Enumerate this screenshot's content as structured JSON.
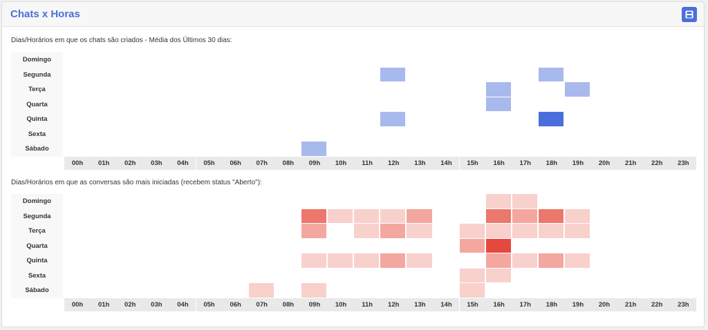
{
  "header": {
    "title": "Chats x Horas",
    "save_icon": "save-icon"
  },
  "colors": {
    "accent": "#4a6fdc"
  },
  "days": [
    "Domingo",
    "Segunda",
    "Terça",
    "Quarta",
    "Quinta",
    "Sexta",
    "Sábado"
  ],
  "hours": [
    "00h",
    "01h",
    "02h",
    "03h",
    "04h",
    "05h",
    "06h",
    "07h",
    "08h",
    "09h",
    "10h",
    "11h",
    "12h",
    "13h",
    "14h",
    "15h",
    "16h",
    "17h",
    "18h",
    "19h",
    "20h",
    "21h",
    "22h",
    "23h"
  ],
  "section1": {
    "caption": "Dias/Horários em que os chats são criados - Média dos Últimos 30 dias:",
    "palette": {
      "none": "#ffffff",
      "low": "#a8b9ed",
      "high": "#4a6fdc"
    },
    "cells": [
      [
        0,
        0,
        0,
        0,
        0,
        0,
        0,
        0,
        0,
        0,
        0,
        0,
        0,
        0,
        0,
        0,
        0,
        0,
        0,
        0,
        0,
        0,
        0,
        0
      ],
      [
        0,
        0,
        0,
        0,
        0,
        0,
        0,
        0,
        0,
        0,
        0,
        0,
        1,
        0,
        0,
        0,
        0,
        0,
        1,
        0,
        0,
        0,
        0,
        0
      ],
      [
        0,
        0,
        0,
        0,
        0,
        0,
        0,
        0,
        0,
        0,
        0,
        0,
        0,
        0,
        0,
        0,
        1,
        0,
        0,
        1,
        0,
        0,
        0,
        0
      ],
      [
        0,
        0,
        0,
        0,
        0,
        0,
        0,
        0,
        0,
        0,
        0,
        0,
        0,
        0,
        0,
        0,
        1,
        0,
        0,
        0,
        0,
        0,
        0,
        0
      ],
      [
        0,
        0,
        0,
        0,
        0,
        0,
        0,
        0,
        0,
        0,
        0,
        0,
        1,
        0,
        0,
        0,
        0,
        0,
        2,
        0,
        0,
        0,
        0,
        0
      ],
      [
        0,
        0,
        0,
        0,
        0,
        0,
        0,
        0,
        0,
        0,
        0,
        0,
        0,
        0,
        0,
        0,
        0,
        0,
        0,
        0,
        0,
        0,
        0,
        0
      ],
      [
        0,
        0,
        0,
        0,
        0,
        0,
        0,
        0,
        0,
        1,
        0,
        0,
        0,
        0,
        0,
        0,
        0,
        0,
        0,
        0,
        0,
        0,
        0,
        0
      ]
    ]
  },
  "section2": {
    "caption": "Dias/Horários em que as conversas são mais iniciadas (recebem status \"Aberto\"):",
    "palette": {
      "none": "#ffffff",
      "l1": "#f8d0cc",
      "l2": "#f3a79f",
      "l3": "#ec776c",
      "l4": "#e5483d"
    },
    "cells": [
      [
        0,
        0,
        0,
        0,
        0,
        0,
        0,
        0,
        0,
        0,
        0,
        0,
        0,
        0,
        0,
        0,
        1,
        1,
        0,
        0,
        0,
        0,
        0,
        0
      ],
      [
        0,
        0,
        0,
        0,
        0,
        0,
        0,
        0,
        0,
        3,
        1,
        1,
        1,
        2,
        0,
        0,
        3,
        2,
        3,
        1,
        0,
        0,
        0,
        0
      ],
      [
        0,
        0,
        0,
        0,
        0,
        0,
        0,
        0,
        0,
        2,
        0,
        1,
        2,
        1,
        0,
        1,
        1,
        1,
        1,
        1,
        0,
        0,
        0,
        0
      ],
      [
        0,
        0,
        0,
        0,
        0,
        0,
        0,
        0,
        0,
        0,
        0,
        0,
        0,
        0,
        0,
        2,
        4,
        0,
        0,
        0,
        0,
        0,
        0,
        0
      ],
      [
        0,
        0,
        0,
        0,
        0,
        0,
        0,
        0,
        0,
        1,
        1,
        1,
        2,
        1,
        0,
        0,
        2,
        1,
        2,
        1,
        0,
        0,
        0,
        0
      ],
      [
        0,
        0,
        0,
        0,
        0,
        0,
        0,
        0,
        0,
        0,
        0,
        0,
        0,
        0,
        0,
        1,
        1,
        0,
        0,
        0,
        0,
        0,
        0,
        0
      ],
      [
        0,
        0,
        0,
        0,
        0,
        0,
        0,
        1,
        0,
        1,
        0,
        0,
        0,
        0,
        0,
        1,
        0,
        0,
        0,
        0,
        0,
        0,
        0,
        0
      ]
    ]
  }
}
